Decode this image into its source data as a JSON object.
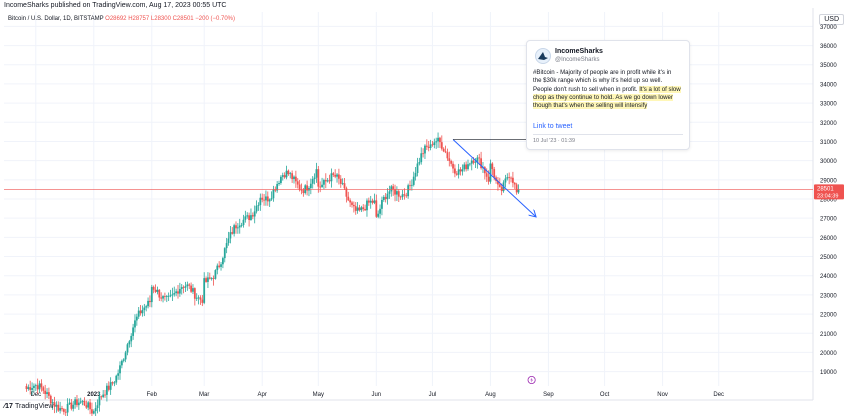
{
  "header": {
    "published": "IncomeSharks published on TradingView.com, Aug 17, 2023 00:55 UTC",
    "currency": "USD"
  },
  "symbol": {
    "name": "Bitcoin / U.S. Dollar, 1D, BITSTAMP",
    "open": "O28692",
    "high": "H28757",
    "low": "L28300",
    "close": "C28501",
    "change": "−200 (−0.70%)"
  },
  "tweet": {
    "name": "IncomeSharks",
    "handle": "@IncomeSharks",
    "text_plain": "#Bitcoin - Majority of people are in profit while it's in the $30k range which is why it's held up so well. People don't rush to sell when in profit.",
    "text_highlight": "It's a lot of slow chop as they continue to hold. As we go down lower though that's when the selling will intensify",
    "link": "Link to tweet",
    "date": "10 Jul '23 · 01:39"
  },
  "footer": {
    "logo_text": "TradingView"
  },
  "colors": {
    "up": "#26a69a",
    "down": "#ef5350",
    "arrow": "#2962ff",
    "grid": "#f0f3fa",
    "price_line": "#ef5350"
  },
  "icons": {
    "logo": "tradingview-logo-icon",
    "avatar": "shark-avatar-icon",
    "event": "lightning-icon"
  },
  "chart_data": {
    "type": "candlestick",
    "y_axis": {
      "ticks": [
        19000,
        20000,
        21000,
        22000,
        23000,
        24000,
        25000,
        26000,
        27000,
        28000,
        29000,
        30000,
        31000,
        32000,
        33000,
        34000,
        35000,
        36000,
        37000
      ],
      "ylim": [
        18250,
        37750
      ],
      "position": "right"
    },
    "x_axis": {
      "labels": [
        "Dec",
        "2023",
        "Feb",
        "Mar",
        "Apr",
        "May",
        "Jun",
        "Jul",
        "Aug",
        "Sep",
        "Oct",
        "Nov",
        "Dec"
      ]
    },
    "last_price": {
      "label": "28501",
      "countdown": "23:04:39",
      "value": 28501
    },
    "grid": true,
    "segments": [
      {
        "period": "Dec 2022",
        "close_start": 18100,
        "close_end": 16800
      },
      {
        "period": "Jan 2023",
        "close_start": 16600,
        "close_end": 23100
      },
      {
        "period": "Feb 2023",
        "close_start": 23100,
        "close_end": 23150
      },
      {
        "period": "Mar 2023",
        "close_start": 23600,
        "close_end": 28450
      },
      {
        "period": "Apr 2023",
        "close_start": 28500,
        "close_end": 29250
      },
      {
        "period": "May 2023",
        "close_start": 29200,
        "close_end": 27200
      },
      {
        "period": "Jun 2023",
        "close_start": 27100,
        "close_end": 30500
      },
      {
        "period": "Jul 2023",
        "close_start": 30600,
        "close_end": 29200
      },
      {
        "period": "Aug 2023",
        "close_start": 29200,
        "close_end": 28501
      }
    ],
    "annotations": [
      {
        "type": "arrow",
        "from": {
          "date": "2023-07-12",
          "price": 31100
        },
        "to": {
          "date": "2023-08-25",
          "price": 27100
        }
      },
      {
        "type": "horizontal-line",
        "price": 31100,
        "from_date": "2023-07-12",
        "to_date": "2023-09-01"
      }
    ]
  }
}
